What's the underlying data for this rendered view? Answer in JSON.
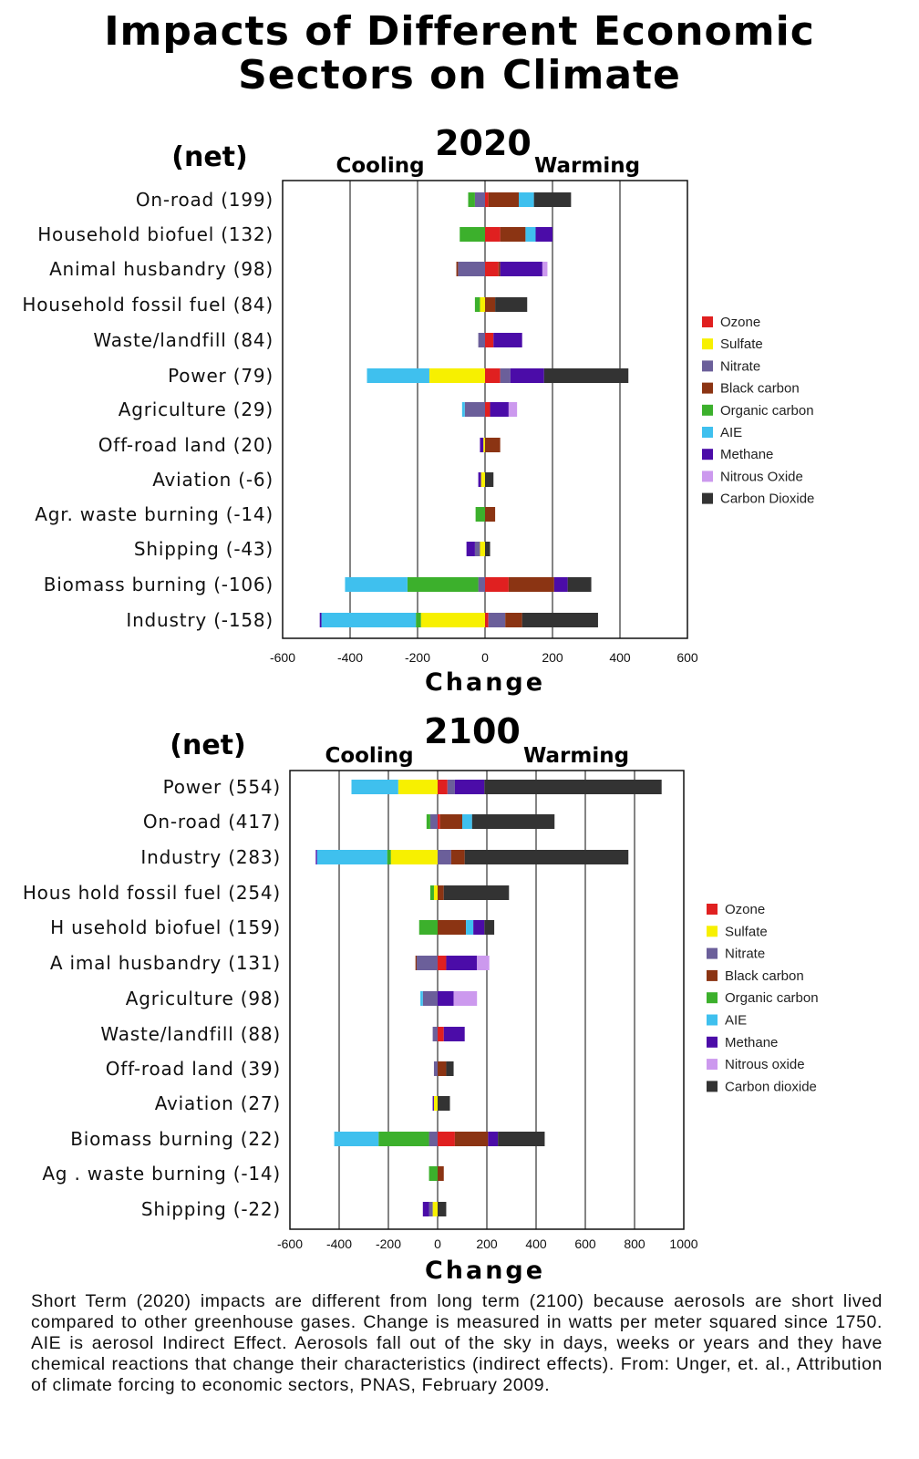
{
  "title_line1": "Impacts of Different Economic",
  "title_line2": "Sectors on Climate",
  "caption": "Short Term (2020) impacts are different from long term (2100) because aerosols are short lived compared to other greenhouse gases. Change is measured in watts per meter squared since 1750. AIE is aerosol Indirect Effect. Aerosols fall out of the sky in days, weeks or years and they have chemical reactions that change their characteristics (indirect effects). From: Unger, et. al., Attribution of climate forcing to economic sectors, PNAS, February 2009.",
  "colors": {
    "Ozone": "#e02020",
    "Sulfate": "#f7f000",
    "Nitrate": "#6b5f9a",
    "Black carbon": "#8b3413",
    "Organic carbon": "#3cb02c",
    "AIE": "#3fc0ee",
    "Methane": "#4b0ca8",
    "Nitrous Oxide": "#cc99ee",
    "Carbon Dioxide": "#333333"
  },
  "chart_data": [
    {
      "type": "bar",
      "stacked": true,
      "orientation": "horizontal",
      "title": "2020",
      "net_label": "(net)",
      "cooling_label": "Cooling",
      "warming_label": "Warming",
      "xlabel": "Change",
      "xlim": [
        -600,
        600
      ],
      "xticks": [
        -600,
        -400,
        -200,
        0,
        200,
        400,
        600
      ],
      "legend": [
        "Ozone",
        "Sulfate",
        "Nitrate",
        "Black carbon",
        "Organic carbon",
        "AIE",
        "Methane",
        "Nitrous Oxide",
        "Carbon Dioxide"
      ],
      "legend_position": "right",
      "categories": [
        "On-road (199)",
        "Household biofuel (132)",
        "Animal husbandry (98)",
        "Household fossil fuel (84)",
        "Waste/landfill (84)",
        "Power (79)",
        "Agriculture (29)",
        "Off-road land (20)",
        "Aviation (-6)",
        "Agr. waste burning (-14)",
        "Shipping (-43)",
        "Biomass burning (-106)",
        "Industry (-158)"
      ],
      "rows": [
        {
          "neg": [
            [
              "Nitrate",
              30
            ],
            [
              "Organic carbon",
              20
            ]
          ],
          "pos": [
            [
              "Ozone",
              10
            ],
            [
              "Black carbon",
              90
            ],
            [
              "AIE",
              45
            ],
            [
              "Carbon Dioxide",
              110
            ]
          ]
        },
        {
          "neg": [
            [
              "Organic carbon",
              75
            ]
          ],
          "pos": [
            [
              "Ozone",
              45
            ],
            [
              "Black carbon",
              75
            ],
            [
              "AIE",
              30
            ],
            [
              "Methane",
              50
            ]
          ]
        },
        {
          "neg": [
            [
              "Nitrate",
              80
            ],
            [
              "Black carbon",
              5
            ]
          ],
          "pos": [
            [
              "Ozone",
              40
            ],
            [
              "Black carbon",
              5
            ],
            [
              "Methane",
              125
            ],
            [
              "Nitrous Oxide",
              15
            ]
          ]
        },
        {
          "neg": [
            [
              "Sulfate",
              15
            ],
            [
              "Organic carbon",
              15
            ]
          ],
          "pos": [
            [
              "Black carbon",
              30
            ],
            [
              "Carbon Dioxide",
              95
            ]
          ]
        },
        {
          "neg": [
            [
              "Nitrate",
              20
            ]
          ],
          "pos": [
            [
              "Ozone",
              25
            ],
            [
              "Methane",
              85
            ]
          ]
        },
        {
          "neg": [
            [
              "Sulfate",
              165
            ],
            [
              "AIE",
              185
            ]
          ],
          "pos": [
            [
              "Ozone",
              45
            ],
            [
              "Nitrate",
              30
            ],
            [
              "Methane",
              100
            ],
            [
              "Carbon Dioxide",
              250
            ]
          ]
        },
        {
          "neg": [
            [
              "Nitrate",
              60
            ],
            [
              "AIE",
              8
            ]
          ],
          "pos": [
            [
              "Ozone",
              15
            ],
            [
              "Methane",
              55
            ],
            [
              "Nitrous Oxide",
              25
            ]
          ]
        },
        {
          "neg": [
            [
              "Sulfate",
              5
            ],
            [
              "Methane",
              10
            ]
          ],
          "pos": [
            [
              "Black carbon",
              45
            ]
          ]
        },
        {
          "neg": [
            [
              "Sulfate",
              12
            ],
            [
              "Methane",
              8
            ]
          ],
          "pos": [
            [
              "Carbon Dioxide",
              25
            ]
          ]
        },
        {
          "neg": [
            [
              "Organic carbon",
              28
            ]
          ],
          "pos": [
            [
              "Black carbon",
              30
            ]
          ]
        },
        {
          "neg": [
            [
              "Sulfate",
              15
            ],
            [
              "Nitrate",
              15
            ],
            [
              "Methane",
              25
            ]
          ],
          "pos": [
            [
              "Carbon Dioxide",
              15
            ]
          ]
        },
        {
          "neg": [
            [
              "Nitrate",
              20
            ],
            [
              "Organic carbon",
              210
            ],
            [
              "AIE",
              185
            ]
          ],
          "pos": [
            [
              "Ozone",
              70
            ],
            [
              "Black carbon",
              135
            ],
            [
              "Methane",
              40
            ],
            [
              "Carbon Dioxide",
              70
            ]
          ]
        },
        {
          "neg": [
            [
              "Sulfate",
              190
            ],
            [
              "Organic carbon",
              15
            ],
            [
              "AIE",
              280
            ],
            [
              "Methane",
              5
            ]
          ],
          "pos": [
            [
              "Ozone",
              10
            ],
            [
              "Nitrate",
              50
            ],
            [
              "Black carbon",
              50
            ],
            [
              "Carbon Dioxide",
              225
            ]
          ]
        }
      ]
    },
    {
      "type": "bar",
      "stacked": true,
      "orientation": "horizontal",
      "title": "2100",
      "net_label": "(net)",
      "cooling_label": "Cooling",
      "warming_label": "Warming",
      "xlabel": "Change",
      "xlim": [
        -600,
        1000
      ],
      "xticks": [
        -600,
        -400,
        -200,
        0,
        200,
        400,
        600,
        800,
        1000
      ],
      "legend": [
        "Ozone",
        "Sulfate",
        "Nitrate",
        "Black carbon",
        "Organic carbon",
        "AIE",
        "Methane",
        "Nitrous oxide",
        "Carbon dioxide"
      ],
      "legend_position": "right",
      "categories": [
        "Power (554)",
        "On-road (417)",
        "Industry (283)",
        "Hous hold fossil fuel (254)",
        "H usehold biofuel (159)",
        "A imal husbandry (131)",
        "Agriculture (98)",
        "Waste/landfill (88)",
        "Off-road land (39)",
        "Aviation (27)",
        "Biomass burning (22)",
        "Ag . waste burning (-14)",
        "Shipping (-22)"
      ],
      "rows": [
        {
          "neg": [
            [
              "Sulfate",
              160
            ],
            [
              "AIE",
              190
            ]
          ],
          "pos": [
            [
              "Ozone",
              40
            ],
            [
              "Nitrate",
              30
            ],
            [
              "Methane",
              120
            ],
            [
              "Carbon Dioxide",
              720
            ]
          ]
        },
        {
          "neg": [
            [
              "Nitrate",
              30
            ],
            [
              "Organic carbon",
              15
            ]
          ],
          "pos": [
            [
              "Ozone",
              10
            ],
            [
              "Black carbon",
              90
            ],
            [
              "AIE",
              40
            ],
            [
              "Carbon Dioxide",
              335
            ]
          ]
        },
        {
          "neg": [
            [
              "Sulfate",
              190
            ],
            [
              "Organic carbon",
              15
            ],
            [
              "AIE",
              285
            ],
            [
              "Methane",
              5
            ]
          ],
          "pos": [
            [
              "Nitrate",
              55
            ],
            [
              "Black carbon",
              55
            ],
            [
              "Carbon Dioxide",
              665
            ]
          ]
        },
        {
          "neg": [
            [
              "Sulfate",
              15
            ],
            [
              "Organic carbon",
              15
            ]
          ],
          "pos": [
            [
              "Black carbon",
              25
            ],
            [
              "Carbon Dioxide",
              265
            ]
          ]
        },
        {
          "neg": [
            [
              "Organic carbon",
              75
            ]
          ],
          "pos": [
            [
              "Black carbon",
              115
            ],
            [
              "AIE",
              30
            ],
            [
              "Methane",
              45
            ],
            [
              "Carbon Dioxide",
              40
            ]
          ]
        },
        {
          "neg": [
            [
              "Nitrate",
              85
            ],
            [
              "Black carbon",
              5
            ]
          ],
          "pos": [
            [
              "Ozone",
              35
            ],
            [
              "Methane",
              125
            ],
            [
              "Nitrous Oxide",
              50
            ]
          ]
        },
        {
          "neg": [
            [
              "Nitrate",
              60
            ],
            [
              "AIE",
              10
            ]
          ],
          "pos": [
            [
              "Methane",
              65
            ],
            [
              "Nitrous Oxide",
              95
            ]
          ]
        },
        {
          "neg": [
            [
              "Nitrate",
              20
            ]
          ],
          "pos": [
            [
              "Ozone",
              25
            ],
            [
              "Methane",
              85
            ]
          ]
        },
        {
          "neg": [
            [
              "Nitrate",
              15
            ]
          ],
          "pos": [
            [
              "Black carbon",
              35
            ],
            [
              "Carbon Dioxide",
              30
            ]
          ]
        },
        {
          "neg": [
            [
              "Sulfate",
              15
            ],
            [
              "Methane",
              5
            ]
          ],
          "pos": [
            [
              "Carbon Dioxide",
              50
            ]
          ]
        },
        {
          "neg": [
            [
              "Nitrate",
              35
            ],
            [
              "Organic carbon",
              205
            ],
            [
              "AIE",
              180
            ]
          ],
          "pos": [
            [
              "Ozone",
              70
            ],
            [
              "Black carbon",
              135
            ],
            [
              "Methane",
              40
            ],
            [
              "Carbon Dioxide",
              190
            ]
          ]
        },
        {
          "neg": [
            [
              "Organic carbon",
              35
            ]
          ],
          "pos": [
            [
              "Black carbon",
              25
            ]
          ]
        },
        {
          "neg": [
            [
              "Sulfate",
              20
            ],
            [
              "Nitrate",
              15
            ],
            [
              "Methane",
              25
            ]
          ],
          "pos": [
            [
              "Carbon Dioxide",
              35
            ]
          ]
        }
      ]
    }
  ]
}
